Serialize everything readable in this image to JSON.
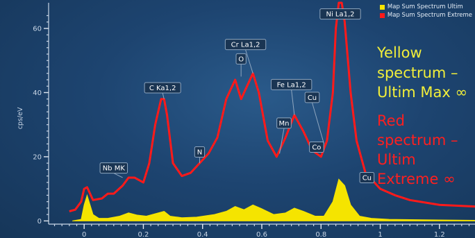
{
  "chart_data": {
    "type": "line",
    "ylabel": "cps/eV",
    "xlim": [
      -0.12,
      1.32
    ],
    "ylim": [
      -1,
      68
    ],
    "x_ticks": [
      0,
      0.2,
      0.4,
      0.6,
      0.8,
      1.0,
      1.2
    ],
    "x_tick_labels": [
      "0",
      "0.2",
      "0.4",
      "0.6",
      "0.8",
      "1",
      "1.2"
    ],
    "y_ticks": [
      0,
      20,
      40,
      60
    ],
    "y_tick_labels": [
      "0",
      "20",
      "40",
      "60"
    ],
    "grid": false,
    "legend_position": "top-right",
    "series": [
      {
        "name": "Map Sum Spectrum Ultim",
        "color": "#f5e400",
        "fill": true,
        "x": [
          -0.04,
          -0.01,
          0.0,
          0.01,
          0.03,
          0.05,
          0.08,
          0.12,
          0.15,
          0.18,
          0.21,
          0.25,
          0.27,
          0.29,
          0.33,
          0.38,
          0.44,
          0.48,
          0.51,
          0.54,
          0.57,
          0.6,
          0.64,
          0.68,
          0.71,
          0.74,
          0.78,
          0.81,
          0.84,
          0.86,
          0.88,
          0.9,
          0.93,
          0.97,
          1.03,
          1.1,
          1.2,
          1.32
        ],
        "y": [
          0,
          0.5,
          5,
          8,
          2,
          0.8,
          0.8,
          1.5,
          2.5,
          1.8,
          1.5,
          2.5,
          3,
          1.5,
          1,
          1.2,
          2,
          3,
          4.5,
          3.5,
          5,
          3.8,
          2,
          2.5,
          4,
          3,
          1.5,
          1.5,
          6,
          13,
          11,
          5,
          1.5,
          0.8,
          0.5,
          0.4,
          0.3,
          0.2
        ]
      },
      {
        "name": "Map Sum Spectrum Extreme",
        "color": "#ff1a1a",
        "fill": false,
        "x": [
          -0.05,
          -0.03,
          -0.01,
          0.0,
          0.01,
          0.03,
          0.06,
          0.08,
          0.1,
          0.13,
          0.15,
          0.17,
          0.2,
          0.22,
          0.24,
          0.26,
          0.27,
          0.28,
          0.3,
          0.33,
          0.36,
          0.39,
          0.42,
          0.45,
          0.48,
          0.51,
          0.53,
          0.55,
          0.57,
          0.59,
          0.62,
          0.65,
          0.68,
          0.71,
          0.74,
          0.77,
          0.8,
          0.82,
          0.84,
          0.85,
          0.86,
          0.87,
          0.88,
          0.9,
          0.92,
          0.95,
          1.0,
          1.05,
          1.1,
          1.2,
          1.32
        ],
        "y": [
          3,
          3.5,
          6,
          10,
          10.5,
          6.5,
          7,
          8.5,
          8.5,
          11,
          13.5,
          13.5,
          12,
          18,
          30,
          38,
          38,
          33,
          18,
          14,
          15,
          18,
          21,
          26,
          38,
          44,
          38,
          42,
          46,
          40,
          25,
          20,
          26,
          33,
          28,
          22,
          20,
          25,
          40,
          60,
          68,
          68,
          62,
          40,
          25,
          15,
          10,
          8,
          6.5,
          5,
          4.5
        ]
      }
    ],
    "annotations": [
      {
        "text": "Nb MK",
        "x": 0.13,
        "y": 13.5,
        "label_x": 0.1,
        "label_y": 16.5
      },
      {
        "text": "C Ka1,2",
        "x": 0.27,
        "y": 38,
        "label_x": 0.265,
        "label_y": 41.5
      },
      {
        "text": "N",
        "x": 0.39,
        "y": 18,
        "label_x": 0.39,
        "label_y": 21.5
      },
      {
        "text": "Cr La1,2",
        "x": 0.57,
        "y": 46,
        "label_x": 0.545,
        "label_y": 55
      },
      {
        "text": "O",
        "x": 0.53,
        "y": 45,
        "label_x": 0.53,
        "label_y": 50.5
      },
      {
        "text": "Fe La1,2",
        "x": 0.71,
        "y": 33,
        "label_x": 0.7,
        "label_y": 42.5
      },
      {
        "text": "Mn",
        "x": 0.66,
        "y": 21,
        "label_x": 0.675,
        "label_y": 30.5
      },
      {
        "text": "Cu",
        "x": 0.81,
        "y": 24,
        "label_x": 0.77,
        "label_y": 38.5
      },
      {
        "text": "Co",
        "x": 0.77,
        "y": 22,
        "label_x": 0.785,
        "label_y": 23
      },
      {
        "text": "Ni La1,2",
        "x": 0.86,
        "y": 66,
        "label_x": 0.865,
        "label_y": 64.5
      },
      {
        "text": "Cu",
        "x": 0.94,
        "y": 12,
        "label_x": 0.955,
        "label_y": 13.5
      }
    ]
  },
  "overlay": {
    "yellow_lines": [
      "Yellow",
      "spectrum –",
      "Ultim Max ∞"
    ],
    "red_lines": [
      "Red",
      "spectrum –",
      "Ultim",
      "Extreme ∞"
    ],
    "yellow_color": "#f2ef3a",
    "red_color": "#ff1f1f"
  }
}
